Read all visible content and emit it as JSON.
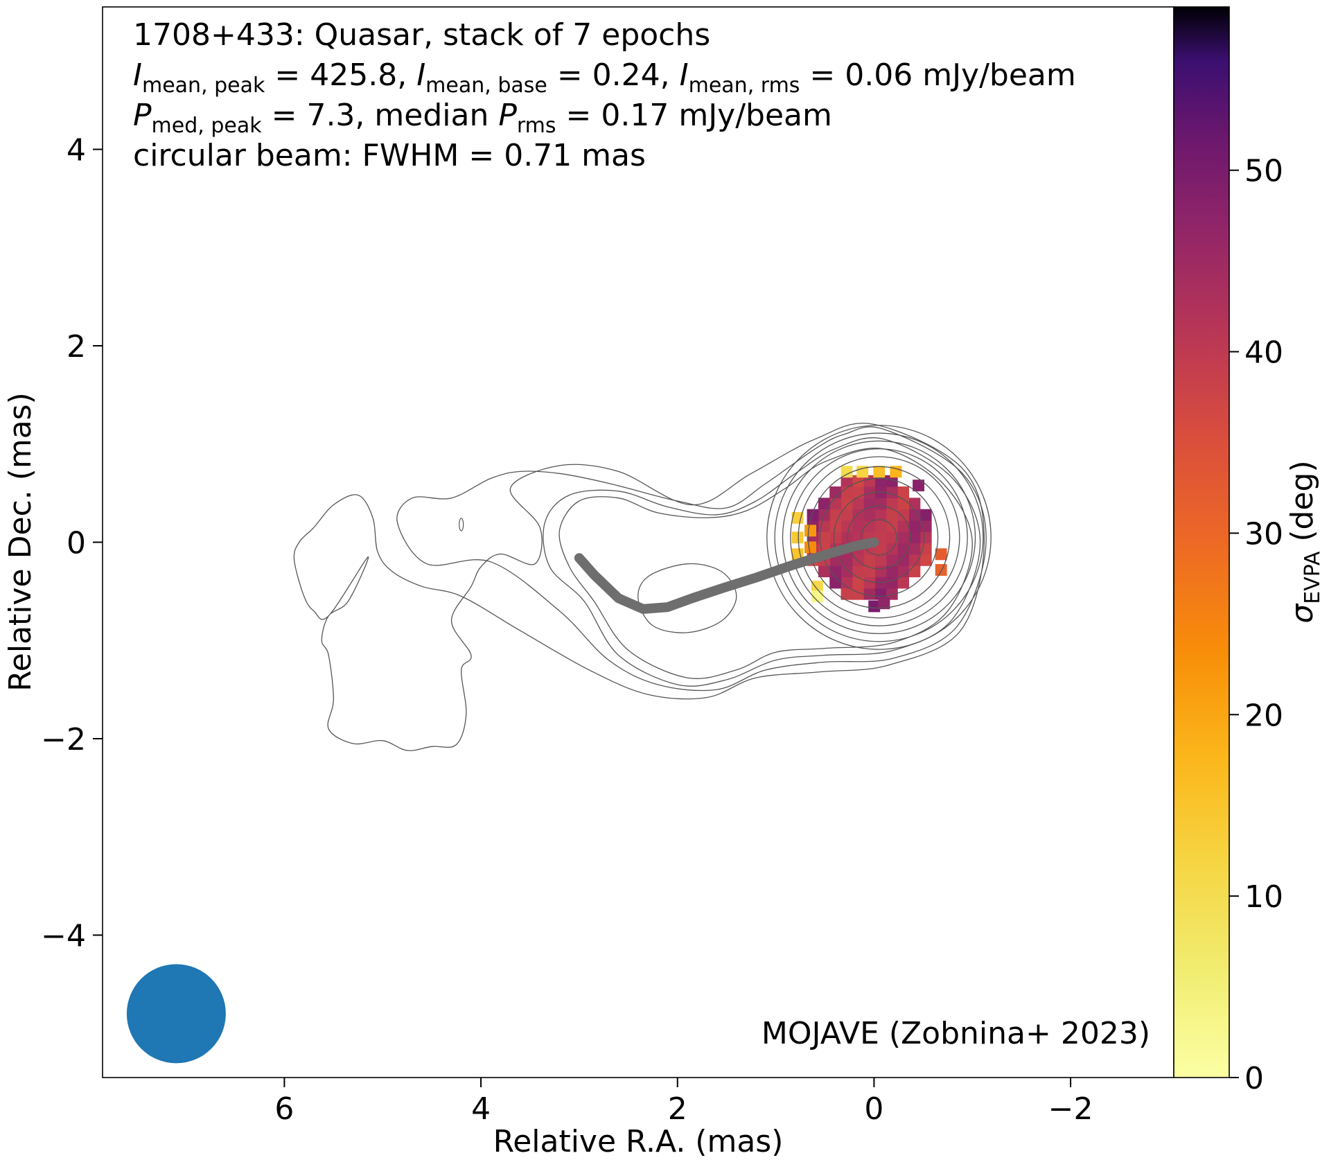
{
  "chart_data": {
    "type": "heatmap",
    "annotation": {
      "line1": "1708+433: Quasar, stack of 7 epochs",
      "line2": {
        "i_peak_sym": "I",
        "i_peak_sub": "mean, peak",
        "i_peak_val": " = 425.8, ",
        "i_base_sym": "I",
        "i_base_sub": "mean, base",
        "i_base_val": " = 0.24, ",
        "i_rms_sym": "I",
        "i_rms_sub": "mean, rms",
        "i_rms_val": " = 0.06 mJy/beam"
      },
      "line3": {
        "p_peak_sym": "P",
        "p_peak_sub": "med, peak",
        "p_peak_val": " = 7.3, median ",
        "p_rms_sym": "P",
        "p_rms_sub": "rms",
        "p_rms_val": " = 0.17 mJy/beam"
      },
      "line4": "circular beam: FWHM = 0.71 mas"
    },
    "credit": "MOJAVE (Zobnina+ 2023)",
    "xlabel": "Relative R.A. (mas)",
    "ylabel": "Relative Dec. (mas)",
    "xlim": [
      7.85,
      -3.05
    ],
    "ylim": [
      -5.45,
      5.45
    ],
    "xticks": [
      6,
      4,
      2,
      0,
      -2
    ],
    "xtick_labels": [
      "6",
      "4",
      "2",
      "0",
      "−2"
    ],
    "yticks": [
      4,
      2,
      0,
      -2,
      -4
    ],
    "ytick_labels": [
      "4",
      "2",
      "0",
      "−2",
      "−4"
    ],
    "colorbar": {
      "label_sym": "σ",
      "label_sub": "EVPA",
      "label_unit": " (deg)",
      "range": [
        0,
        59
      ],
      "ticks": [
        0,
        10,
        20,
        30,
        40,
        50
      ],
      "tick_labels": [
        "0",
        "10",
        "20",
        "30",
        "40",
        "50"
      ],
      "colormap": "inferno_r"
    },
    "beam": {
      "x": 7.1,
      "y": -4.8,
      "fwhm": 0.71,
      "color": "#1f77b4"
    },
    "ridge_line": {
      "color": "#6e6e6e",
      "points": [
        [
          3.0,
          -0.16
        ],
        [
          2.85,
          -0.33
        ],
        [
          2.6,
          -0.57
        ],
        [
          2.35,
          -0.68
        ],
        [
          2.1,
          -0.66
        ],
        [
          1.85,
          -0.57
        ],
        [
          1.55,
          -0.47
        ],
        [
          1.2,
          -0.36
        ],
        [
          0.85,
          -0.24
        ],
        [
          0.5,
          -0.13
        ],
        [
          0.2,
          -0.04
        ],
        [
          0.0,
          0.0
        ]
      ]
    },
    "polarization_map": {
      "center": [
        0.05,
        0.05
      ],
      "core_radius": 0.62,
      "core_sigma_evpa": 40,
      "edge_pixels": [
        {
          "ra": 0.12,
          "dec": 0.72,
          "sigma_evpa": 12
        },
        {
          "ra": -0.05,
          "dec": 0.72,
          "sigma_evpa": 16
        },
        {
          "ra": 0.28,
          "dec": 0.72,
          "sigma_evpa": 10
        },
        {
          "ra": -0.22,
          "dec": 0.72,
          "sigma_evpa": 18
        },
        {
          "ra": 0.78,
          "dec": 0.25,
          "sigma_evpa": 13
        },
        {
          "ra": 0.78,
          "dec": 0.05,
          "sigma_evpa": 14
        },
        {
          "ra": 0.78,
          "dec": -0.12,
          "sigma_evpa": 15
        },
        {
          "ra": 0.65,
          "dec": 0.12,
          "sigma_evpa": 22
        },
        {
          "ra": 0.65,
          "dec": -0.05,
          "sigma_evpa": 24
        },
        {
          "ra": 0.58,
          "dec": -0.45,
          "sigma_evpa": 11
        },
        {
          "ra": 0.58,
          "dec": -0.55,
          "sigma_evpa": 3
        },
        {
          "ra": -0.68,
          "dec": -0.12,
          "sigma_evpa": 32
        },
        {
          "ra": -0.68,
          "dec": -0.28,
          "sigma_evpa": 31
        },
        {
          "ra": 0.0,
          "dec": -0.65,
          "sigma_evpa": 50
        },
        {
          "ra": -0.45,
          "dec": 0.58,
          "sigma_evpa": 48
        },
        {
          "ra": -0.1,
          "dec": -0.62,
          "sigma_evpa": 47
        }
      ]
    },
    "contours": {
      "color": "#555555",
      "core_center": [
        -0.05,
        0.05
      ],
      "core_rings_radii": [
        0.18,
        0.32,
        0.46,
        0.6,
        0.72,
        0.82,
        0.9,
        0.98,
        1.06,
        1.14
      ],
      "components": [
        [
          [
            1.4,
            -0.55
          ],
          [
            1.55,
            -0.3
          ],
          [
            1.9,
            -0.22
          ],
          [
            2.3,
            -0.35
          ],
          [
            2.4,
            -0.58
          ],
          [
            2.25,
            -0.85
          ],
          [
            1.9,
            -0.92
          ],
          [
            1.55,
            -0.8
          ]
        ]
      ],
      "envelopes": [
        [
          [
            -0.1,
            0.95
          ],
          [
            -0.7,
            0.6
          ],
          [
            -1.0,
            0.0
          ],
          [
            -0.75,
            -0.7
          ],
          [
            -0.2,
            -1.02
          ],
          [
            0.5,
            -1.08
          ],
          [
            1.0,
            -1.12
          ],
          [
            1.4,
            -1.3
          ],
          [
            1.9,
            -1.38
          ],
          [
            2.5,
            -1.1
          ],
          [
            2.85,
            -0.6
          ],
          [
            3.1,
            -0.25
          ],
          [
            3.2,
            0.12
          ],
          [
            3.0,
            0.42
          ],
          [
            2.6,
            0.45
          ],
          [
            2.2,
            0.3
          ],
          [
            1.7,
            0.25
          ],
          [
            1.3,
            0.32
          ],
          [
            0.9,
            0.55
          ],
          [
            0.5,
            0.82
          ]
        ],
        [
          [
            -0.1,
            1.05
          ],
          [
            -0.8,
            0.65
          ],
          [
            -1.08,
            0.0
          ],
          [
            -0.8,
            -0.78
          ],
          [
            -0.2,
            -1.1
          ],
          [
            0.5,
            -1.15
          ],
          [
            1.0,
            -1.2
          ],
          [
            1.5,
            -1.4
          ],
          [
            2.0,
            -1.45
          ],
          [
            2.6,
            -1.15
          ],
          [
            2.95,
            -0.6
          ],
          [
            3.3,
            -0.25
          ],
          [
            3.35,
            0.2
          ],
          [
            3.1,
            0.48
          ],
          [
            2.6,
            0.52
          ],
          [
            2.1,
            0.36
          ],
          [
            1.6,
            0.28
          ],
          [
            1.2,
            0.42
          ],
          [
            0.8,
            0.7
          ],
          [
            0.4,
            0.95
          ]
        ],
        [
          [
            -0.1,
            1.15
          ],
          [
            -0.9,
            0.7
          ],
          [
            -1.14,
            0.0
          ],
          [
            -0.85,
            -0.85
          ],
          [
            -0.2,
            -1.18
          ],
          [
            0.5,
            -1.22
          ],
          [
            1.1,
            -1.3
          ],
          [
            1.6,
            -1.5
          ],
          [
            2.2,
            -1.45
          ],
          [
            2.7,
            -1.2
          ],
          [
            3.2,
            -0.7
          ],
          [
            3.9,
            -0.2
          ],
          [
            4.55,
            -0.22
          ],
          [
            4.85,
            0.2
          ],
          [
            4.7,
            0.45
          ],
          [
            4.3,
            0.45
          ],
          [
            3.9,
            0.65
          ],
          [
            3.6,
            0.72
          ],
          [
            3.2,
            0.7
          ],
          [
            2.7,
            0.6
          ],
          [
            2.0,
            0.42
          ],
          [
            1.5,
            0.35
          ],
          [
            1.1,
            0.6
          ],
          [
            0.6,
            0.95
          ],
          [
            0.3,
            1.1
          ]
        ],
        [
          [
            5.15,
            -0.15
          ],
          [
            5.35,
            -0.6
          ],
          [
            5.55,
            -0.75
          ],
          [
            5.62,
            -1.0
          ],
          [
            5.55,
            -1.15
          ],
          [
            5.5,
            -1.6
          ],
          [
            5.55,
            -1.9
          ],
          [
            5.3,
            -2.05
          ],
          [
            5.0,
            -2.02
          ],
          [
            4.75,
            -2.12
          ],
          [
            4.5,
            -2.08
          ],
          [
            4.25,
            -2.06
          ],
          [
            4.15,
            -1.75
          ],
          [
            4.2,
            -1.3
          ],
          [
            4.1,
            -1.15
          ],
          [
            4.3,
            -0.8
          ],
          [
            4.1,
            -0.45
          ],
          [
            4.0,
            -0.25
          ],
          [
            3.8,
            -0.12
          ],
          [
            3.45,
            -0.22
          ],
          [
            3.4,
            0.15
          ],
          [
            3.7,
            0.55
          ],
          [
            3.2,
            0.78
          ],
          [
            2.6,
            0.72
          ],
          [
            1.85,
            0.38
          ],
          [
            1.25,
            0.7
          ],
          [
            0.6,
            1.05
          ],
          [
            0.0,
            1.2
          ],
          [
            -0.9,
            0.75
          ],
          [
            -1.12,
            0.0
          ],
          [
            -0.88,
            -0.9
          ],
          [
            -0.15,
            -1.25
          ],
          [
            0.55,
            -1.32
          ],
          [
            1.2,
            -1.38
          ],
          [
            1.7,
            -1.58
          ],
          [
            2.3,
            -1.55
          ],
          [
            2.9,
            -1.3
          ],
          [
            3.6,
            -0.9
          ],
          [
            4.2,
            -0.55
          ],
          [
            4.6,
            -0.45
          ],
          [
            4.9,
            -0.3
          ],
          [
            5.05,
            -0.1
          ],
          [
            5.1,
            0.25
          ],
          [
            5.25,
            0.48
          ],
          [
            5.5,
            0.38
          ],
          [
            5.7,
            0.15
          ],
          [
            5.85,
            0.0
          ],
          [
            5.9,
            -0.18
          ],
          [
            5.8,
            -0.55
          ],
          [
            5.7,
            -0.7
          ],
          [
            5.55,
            -0.75
          ]
        ]
      ]
    }
  }
}
